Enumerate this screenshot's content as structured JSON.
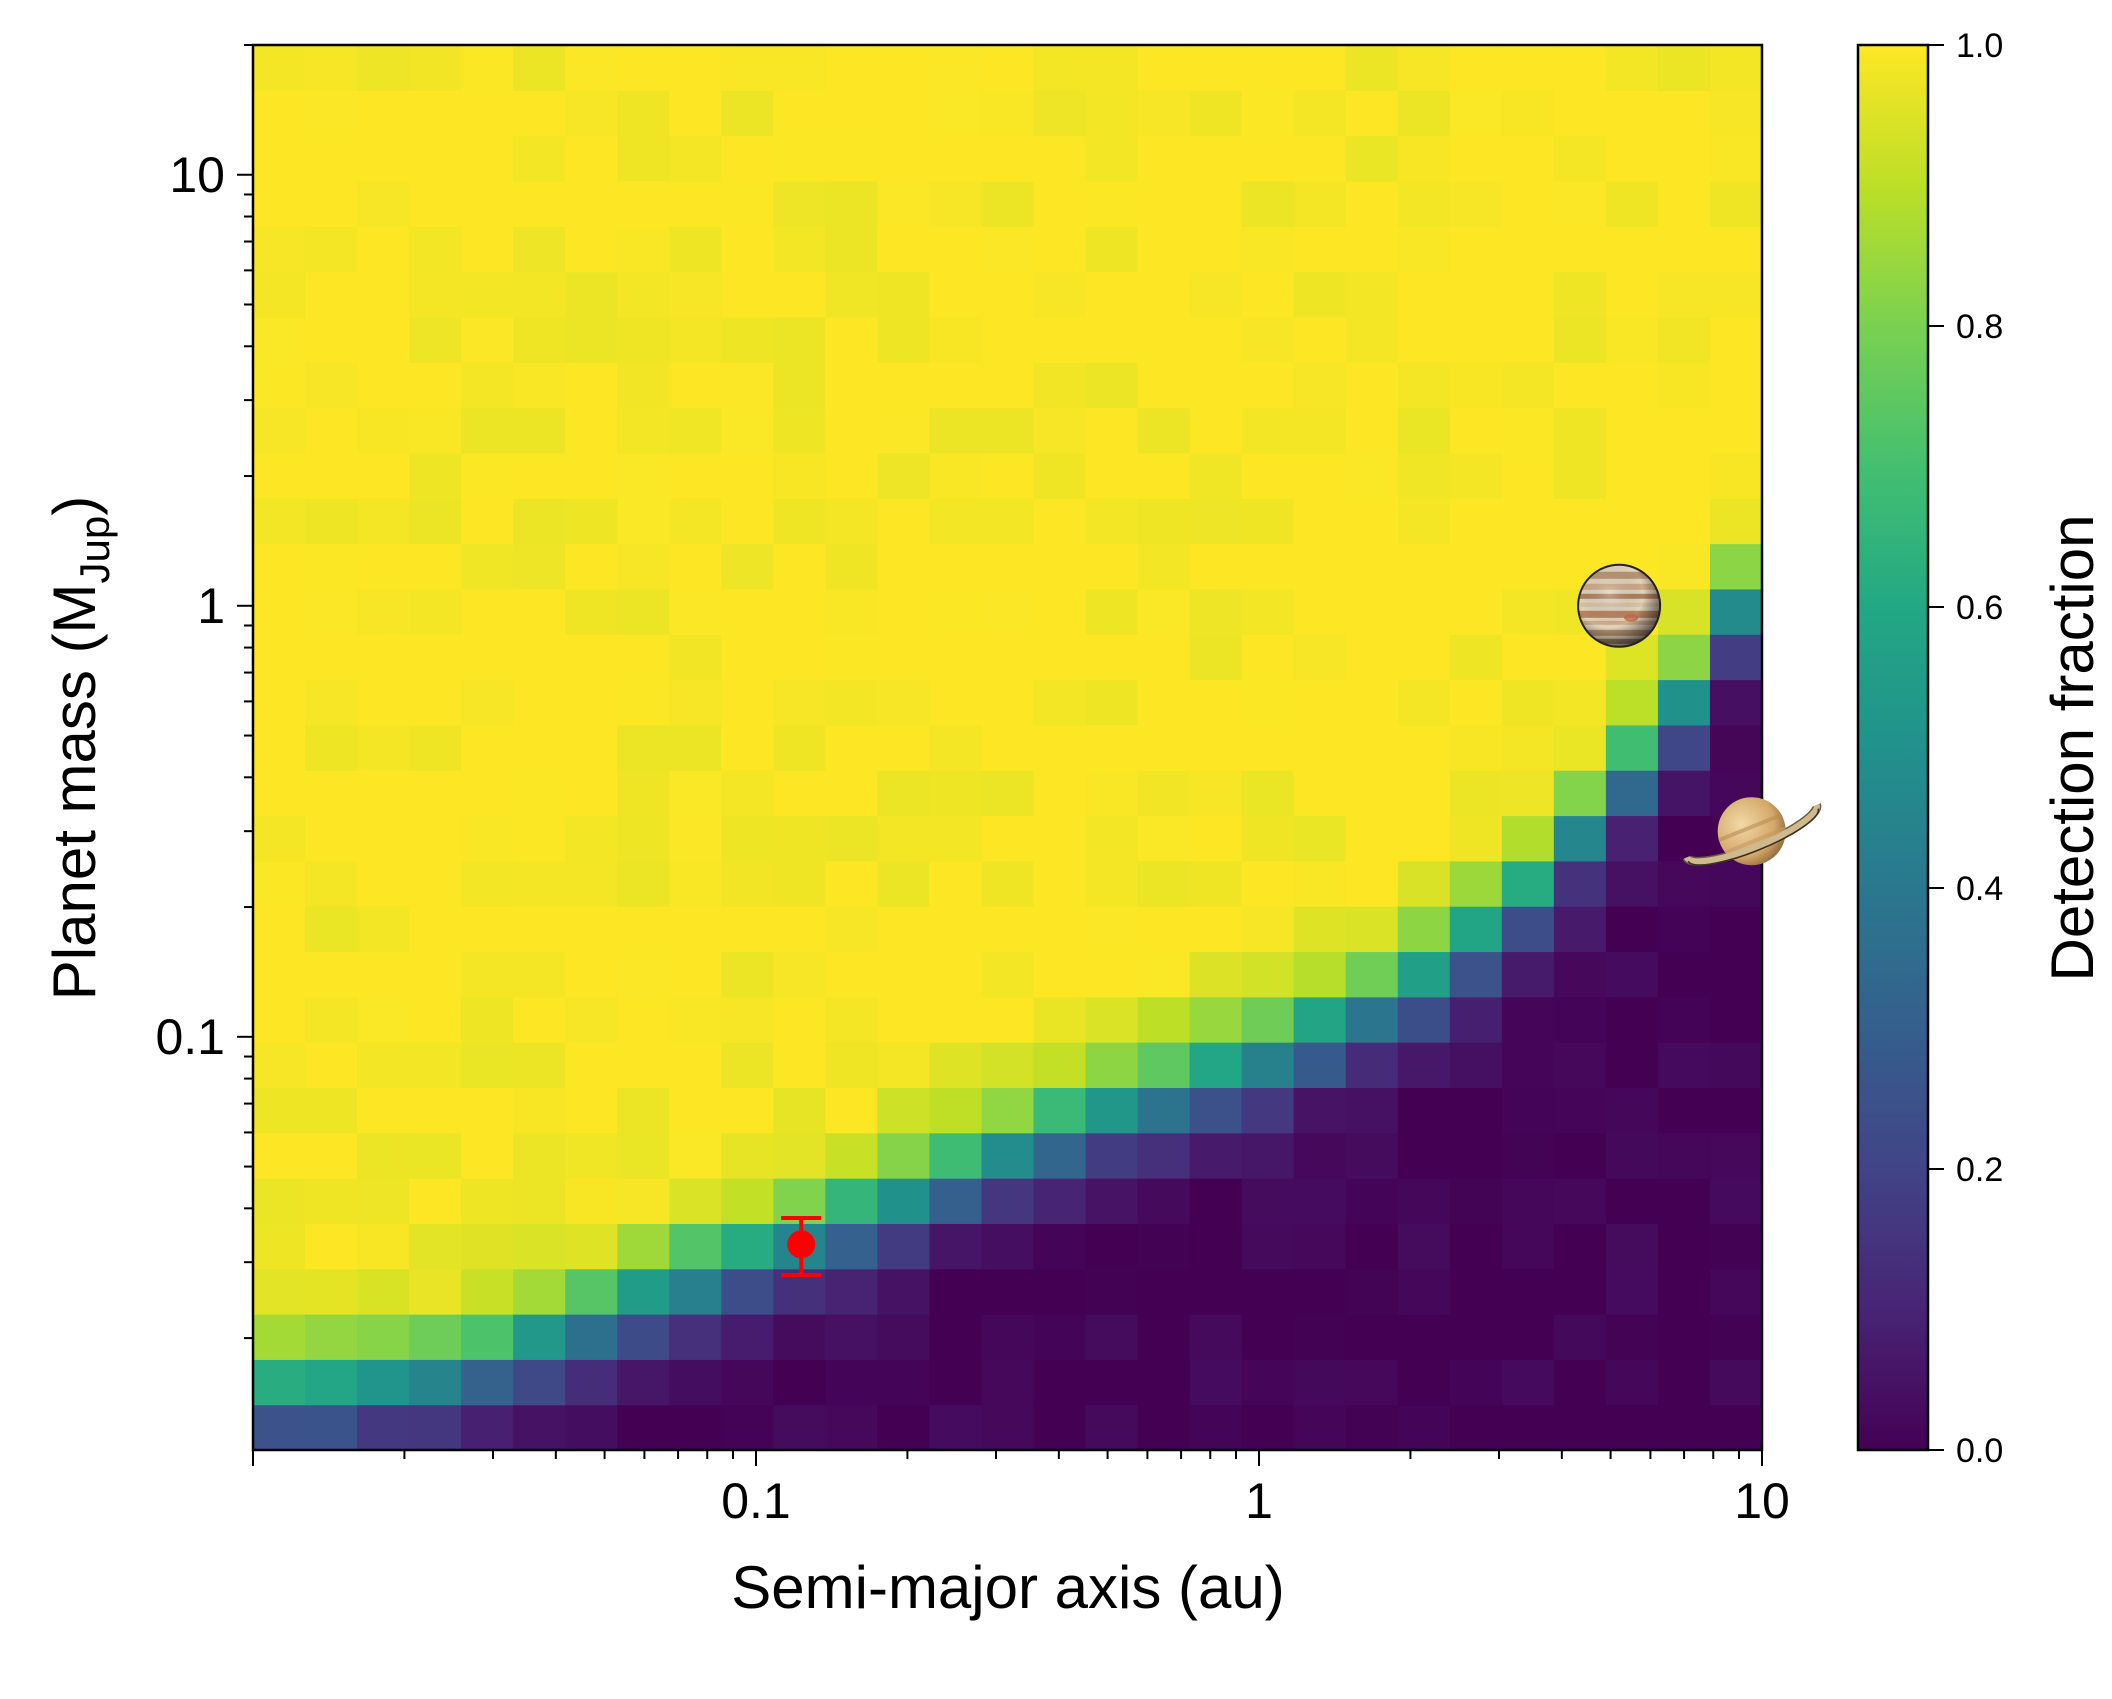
{
  "chart_data": {
    "type": "heatmap",
    "title": "",
    "xlabel": "Semi-major axis (au)",
    "ylabel_main": "Planet mass (M",
    "ylabel_sub": "Jup",
    "ylabel_close": ")",
    "xscale": "log",
    "yscale": "log",
    "xlim": [
      0.01,
      10
    ],
    "ylim": [
      0.011,
      20
    ],
    "grid": false,
    "x_ticks": [
      {
        "value": 0.1,
        "label": "0.1"
      },
      {
        "value": 1,
        "label": "1"
      },
      {
        "value": 10,
        "label": "10"
      }
    ],
    "y_ticks": [
      {
        "value": 0.1,
        "label": "0.1"
      },
      {
        "value": 1,
        "label": "1"
      },
      {
        "value": 10,
        "label": "10"
      }
    ],
    "grid_cells": {
      "nx": 29,
      "ny": 31
    },
    "colormap": "viridis",
    "colorbar": {
      "label": "Detection fraction",
      "range": [
        0,
        1
      ],
      "ticks": [
        {
          "value": 0.0,
          "label": "0.0"
        },
        {
          "value": 0.2,
          "label": "0.2"
        },
        {
          "value": 0.4,
          "label": "0.4"
        },
        {
          "value": 0.6,
          "label": "0.6"
        },
        {
          "value": 0.8,
          "label": "0.8"
        },
        {
          "value": 1.0,
          "label": "1.0"
        }
      ]
    },
    "detection_boundary_log10": {
      "log10_a": [
        -2.0,
        -1.6,
        -1.2,
        -0.8,
        -0.4,
        0.0,
        0.3,
        0.5,
        0.7,
        0.85,
        1.0
      ],
      "log10_m_center": [
        -1.85,
        -1.78,
        -1.6,
        -1.42,
        -1.22,
        -1.05,
        -0.9,
        -0.72,
        -0.45,
        -0.22,
        0.1
      ],
      "transition_width": 0.18
    },
    "planet_point": {
      "a": 0.123,
      "mass": 0.033,
      "mass_err_low": 0.005,
      "mass_err_high": 0.005,
      "color": "#ff0000"
    },
    "markers": [
      {
        "name": "Jupiter",
        "a": 5.2,
        "mass": 1.0,
        "icon": "jupiter-icon"
      },
      {
        "name": "Saturn",
        "a": 9.54,
        "mass": 0.3,
        "icon": "saturn-icon"
      }
    ]
  }
}
